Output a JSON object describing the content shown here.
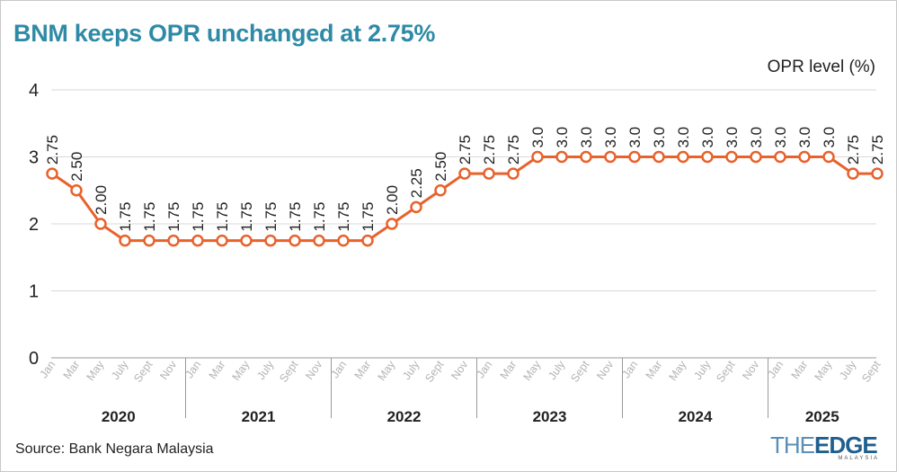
{
  "title": "BNM keeps OPR unchanged at 2.75%",
  "unit_label": "OPR level (%)",
  "source": "Source: Bank Negara Malaysia",
  "logo": {
    "the": "THE",
    "edge": "EDGE",
    "sub": "MALAYSIA"
  },
  "colors": {
    "title": "#2e8aa6",
    "line": "#e8622c",
    "grid": "#d9d9d9"
  },
  "chart_data": {
    "type": "line",
    "title": "BNM keeps OPR unchanged at 2.75%",
    "ylabel": "OPR level (%)",
    "ylim": [
      0,
      4
    ],
    "yticks": [
      0,
      1,
      2,
      3,
      4
    ],
    "grid": true,
    "years": [
      {
        "label": "2020",
        "start": 0,
        "end": 5
      },
      {
        "label": "2021",
        "start": 6,
        "end": 11
      },
      {
        "label": "2022",
        "start": 12,
        "end": 17
      },
      {
        "label": "2023",
        "start": 18,
        "end": 23
      },
      {
        "label": "2024",
        "start": 24,
        "end": 29
      },
      {
        "label": "2025",
        "start": 30,
        "end": 34
      }
    ],
    "categories": [
      "Jan",
      "Mar",
      "May",
      "July",
      "Sept",
      "Nov",
      "Jan",
      "Mar",
      "May",
      "July",
      "Sept",
      "Nov",
      "Jan",
      "Mar",
      "May",
      "July",
      "Sept",
      "Nov",
      "Jan",
      "Mar",
      "May",
      "July",
      "Sept",
      "Nov",
      "Jan",
      "Mar",
      "May",
      "July",
      "Sept",
      "Nov",
      "Jan",
      "Mar",
      "May",
      "July",
      "Sept"
    ],
    "values": [
      2.75,
      2.5,
      2.0,
      1.75,
      1.75,
      1.75,
      1.75,
      1.75,
      1.75,
      1.75,
      1.75,
      1.75,
      1.75,
      1.75,
      2.0,
      2.25,
      2.5,
      2.75,
      2.75,
      2.75,
      3.0,
      3.0,
      3.0,
      3.0,
      3.0,
      3.0,
      3.0,
      3.0,
      3.0,
      3.0,
      3.0,
      3.0,
      3.0,
      2.75,
      2.75
    ],
    "data_labels": [
      "2.75",
      "2.50",
      "2.00",
      "1.75",
      "1.75",
      "1.75",
      "1.75",
      "1.75",
      "1.75",
      "1.75",
      "1.75",
      "1.75",
      "1.75",
      "1.75",
      "2.00",
      "2.25",
      "2.50",
      "2.75",
      "2.75",
      "2.75",
      "3.0",
      "3.0",
      "3.0",
      "3.0",
      "3.0",
      "3.0",
      "3.0",
      "3.0",
      "3.0",
      "3.0",
      "3.0",
      "3.0",
      "3.0",
      "2.75",
      "2.75"
    ]
  }
}
